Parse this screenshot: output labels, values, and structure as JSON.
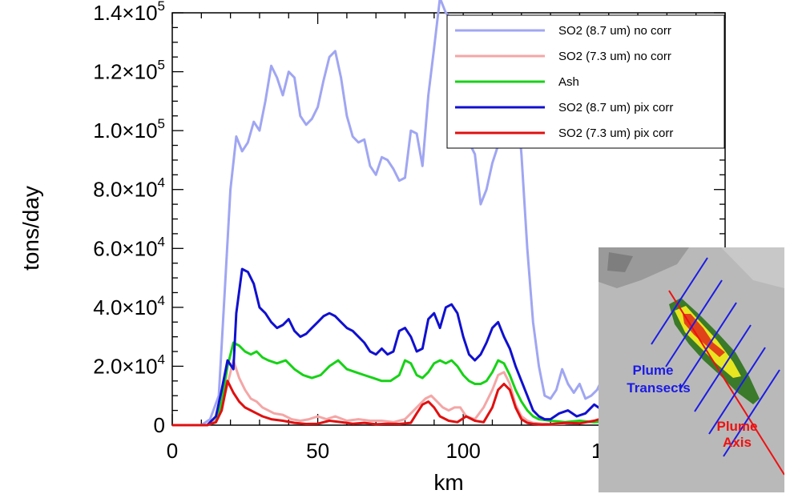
{
  "chart_data": {
    "type": "line",
    "xlabel": "km",
    "ylabel": "tons/day",
    "xlim": [
      0,
      190
    ],
    "ylim": [
      0,
      140000
    ],
    "x_ticks": [
      0,
      50,
      100,
      150
    ],
    "x_tick_labels": [
      "0",
      "50",
      "100",
      "150"
    ],
    "y_ticks": [
      0,
      20000,
      40000,
      60000,
      80000,
      100000,
      120000,
      140000
    ],
    "y_tick_labels": [
      {
        "mantissa": "0",
        "exp": ""
      },
      {
        "mantissa": "2.0×10",
        "exp": "4"
      },
      {
        "mantissa": "4.0×10",
        "exp": "4"
      },
      {
        "mantissa": "6.0×10",
        "exp": "4"
      },
      {
        "mantissa": "8.0×10",
        "exp": "4"
      },
      {
        "mantissa": "1.0×10",
        "exp": "5"
      },
      {
        "mantissa": "1.2×10",
        "exp": "5"
      },
      {
        "mantissa": "1.4×10",
        "exp": "5"
      }
    ],
    "legend_position": "top-right",
    "series": [
      {
        "name": "SO2 (8.7 um) no corr",
        "color": "#a0a6f2",
        "x": [
          0,
          10,
          13,
          16,
          18,
          20,
          22,
          24,
          26,
          28,
          30,
          32,
          34,
          36,
          38,
          40,
          42,
          44,
          46,
          48,
          50,
          52,
          54,
          56,
          58,
          60,
          62,
          64,
          66,
          68,
          70,
          72,
          74,
          76,
          78,
          80,
          82,
          84,
          86,
          88,
          90,
          92,
          94,
          96,
          98,
          100,
          102,
          104,
          106,
          108,
          110,
          112,
          114,
          116,
          118,
          120,
          122,
          124,
          126,
          128,
          130,
          132,
          134,
          136,
          138,
          140,
          142,
          144,
          146,
          148,
          150,
          152,
          154,
          156,
          158,
          160,
          162,
          164,
          166,
          168,
          170,
          172,
          174,
          176,
          178,
          180,
          182,
          185,
          188
        ],
        "y": [
          0,
          0,
          2000,
          10000,
          45000,
          80000,
          98000,
          93000,
          96000,
          103000,
          100000,
          110000,
          122000,
          118000,
          112000,
          120000,
          118000,
          105000,
          102000,
          104000,
          108000,
          117000,
          125000,
          127000,
          118000,
          105000,
          98000,
          96000,
          97000,
          88000,
          85000,
          91000,
          90000,
          87000,
          83000,
          84000,
          100000,
          99000,
          88000,
          112000,
          128000,
          145000,
          140000,
          138000,
          132000,
          110000,
          96000,
          92000,
          75000,
          80000,
          89000,
          95000,
          112000,
          125000,
          115000,
          92000,
          60000,
          35000,
          20000,
          10000,
          9000,
          12000,
          19000,
          14000,
          11000,
          14000,
          9000,
          10000,
          12000,
          16000,
          20000,
          22000,
          18000,
          13000,
          10000,
          10000,
          8000,
          12000,
          10000,
          8000,
          11000,
          13000,
          9000,
          6000,
          5000,
          7000,
          3000,
          1000,
          0
        ]
      },
      {
        "name": "SO2 (7.3 um) no corr",
        "color": "#f4a6a6",
        "x": [
          0,
          12,
          15,
          17,
          19,
          21,
          23,
          25,
          27,
          29,
          31,
          33,
          35,
          38,
          41,
          44,
          47,
          50,
          53,
          56,
          60,
          64,
          68,
          72,
          76,
          80,
          84,
          87,
          89,
          91,
          93,
          95,
          97,
          99,
          101,
          104,
          107,
          110,
          112,
          114,
          116,
          118,
          120,
          122,
          124,
          127,
          130,
          135,
          140,
          145,
          150,
          155,
          160,
          165,
          170,
          175,
          180,
          185,
          188
        ],
        "y": [
          0,
          0,
          2000,
          6000,
          14000,
          22000,
          16000,
          12000,
          9000,
          8000,
          6000,
          5000,
          4000,
          3500,
          2000,
          1500,
          2000,
          3000,
          2000,
          3000,
          1500,
          2000,
          1500,
          1500,
          1000,
          2000,
          6000,
          9000,
          10000,
          8000,
          6000,
          5000,
          6000,
          6000,
          3000,
          2000,
          6000,
          12000,
          17000,
          18000,
          14000,
          7000,
          3000,
          1500,
          800,
          500,
          300,
          500,
          1200,
          1000,
          1500,
          1200,
          1300,
          900,
          800,
          700,
          400,
          200,
          0
        ]
      },
      {
        "name": "Ash",
        "color": "#17d217",
        "x": [
          0,
          12,
          15,
          17,
          19,
          21,
          23,
          25,
          27,
          29,
          31,
          33,
          36,
          39,
          42,
          45,
          48,
          51,
          54,
          57,
          60,
          63,
          66,
          69,
          72,
          75,
          78,
          80,
          82,
          84,
          86,
          88,
          90,
          92,
          94,
          96,
          98,
          100,
          102,
          104,
          106,
          108,
          110,
          112,
          114,
          116,
          118,
          120,
          122,
          124,
          126,
          130,
          135,
          140,
          145,
          150,
          155,
          160,
          165,
          170,
          175,
          180,
          185,
          188
        ],
        "y": [
          0,
          0,
          1000,
          8000,
          20000,
          28000,
          27000,
          25000,
          24000,
          25000,
          23000,
          22000,
          21000,
          22000,
          19000,
          17000,
          16000,
          17000,
          20000,
          22000,
          19000,
          18000,
          17000,
          16000,
          15000,
          15000,
          17000,
          22000,
          21000,
          17000,
          16000,
          18000,
          21000,
          22000,
          21000,
          22000,
          20000,
          17000,
          15000,
          14000,
          14000,
          15000,
          18000,
          22000,
          21000,
          17000,
          12000,
          8000,
          5000,
          3000,
          2000,
          1500,
          1000,
          1500,
          1000,
          1200,
          1000,
          900,
          800,
          600,
          500,
          300,
          100,
          0
        ]
      },
      {
        "name": "SO2 (8.7 um) pix corr",
        "color": "#1010d0",
        "x": [
          0,
          12,
          15,
          17,
          19,
          21,
          22,
          24,
          26,
          28,
          30,
          32,
          34,
          36,
          38,
          40,
          42,
          44,
          46,
          48,
          50,
          52,
          54,
          56,
          58,
          60,
          62,
          64,
          66,
          68,
          70,
          72,
          74,
          76,
          78,
          80,
          82,
          84,
          86,
          88,
          90,
          92,
          94,
          96,
          98,
          100,
          102,
          104,
          106,
          108,
          110,
          112,
          114,
          116,
          118,
          120,
          122,
          124,
          126,
          128,
          130,
          133,
          136,
          139,
          142,
          145,
          148,
          151,
          154,
          157,
          160,
          163,
          166,
          169,
          172,
          175,
          178,
          181,
          185,
          188
        ],
        "y": [
          0,
          0,
          3000,
          12000,
          22000,
          19000,
          38000,
          53000,
          52000,
          48000,
          40000,
          38000,
          35000,
          33000,
          34000,
          36000,
          32000,
          30000,
          31000,
          33000,
          35000,
          37000,
          38000,
          37000,
          35000,
          33000,
          32000,
          30000,
          28000,
          25000,
          24000,
          26000,
          24000,
          25000,
          32000,
          33000,
          30000,
          25000,
          26000,
          36000,
          38000,
          33000,
          40000,
          41000,
          38000,
          30000,
          24000,
          22000,
          24000,
          28000,
          33000,
          35000,
          30000,
          26000,
          20000,
          15000,
          10000,
          5000,
          3000,
          2000,
          2000,
          4000,
          5000,
          3000,
          4000,
          7000,
          5000,
          4000,
          6000,
          10000,
          7000,
          5000,
          10000,
          8000,
          5000,
          6000,
          4000,
          2000,
          500,
          0
        ]
      },
      {
        "name": "SO2 (7.3 um) pix corr",
        "color": "#e01010",
        "x": [
          0,
          12,
          15,
          17,
          19,
          21,
          23,
          25,
          27,
          29,
          31,
          34,
          38,
          42,
          46,
          50,
          54,
          58,
          62,
          66,
          70,
          74,
          78,
          82,
          84,
          86,
          88,
          90,
          92,
          95,
          98,
          101,
          104,
          107,
          110,
          112,
          114,
          116,
          118,
          120,
          122,
          124,
          127,
          130,
          135,
          140,
          145,
          150,
          155,
          160,
          165,
          170,
          175,
          180,
          185,
          188
        ],
        "y": [
          0,
          0,
          1000,
          5000,
          15000,
          11000,
          8000,
          6000,
          5000,
          4000,
          3000,
          2000,
          1500,
          800,
          400,
          500,
          1500,
          1000,
          500,
          800,
          300,
          500,
          400,
          800,
          4000,
          7000,
          8000,
          6000,
          3000,
          1500,
          1000,
          3000,
          1500,
          1000,
          6000,
          12000,
          14000,
          12000,
          6000,
          2000,
          800,
          400,
          200,
          300,
          800,
          600,
          1500,
          3000,
          2000,
          3500,
          1500,
          1000,
          500,
          300,
          100,
          0
        ]
      }
    ]
  },
  "inset": {
    "label_transects_line1": "Plume",
    "label_transects_line2": "Transects",
    "label_axis_line1": "Plume",
    "label_axis_line2": "Axis",
    "transect_color": "#1b1be6",
    "axis_color": "#ee1111"
  }
}
